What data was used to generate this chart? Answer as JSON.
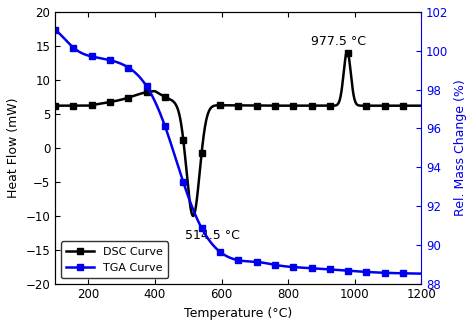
{
  "title": "",
  "xlabel": "Temperature (°C)",
  "ylabel_left": "Heat Flow (mW)",
  "ylabel_right": "Rel. Mass Change (%)",
  "xlim": [
    100,
    1200
  ],
  "ylim_left": [
    -20,
    20
  ],
  "ylim_right": [
    88,
    102
  ],
  "xticks": [
    200,
    400,
    600,
    800,
    1000,
    1200
  ],
  "yticks_left": [
    -20,
    -15,
    -10,
    -5,
    0,
    5,
    10,
    15,
    20
  ],
  "yticks_right": [
    88,
    90,
    92,
    94,
    96,
    98,
    100,
    102
  ],
  "dsc_color": "#000000",
  "tga_color": "#0000ee",
  "annotation_514": "514.5 °C",
  "annotation_977": "977.5 °C",
  "legend_dsc": "DSC Curve",
  "legend_tga": "TGA Curve",
  "background_color": "#ffffff",
  "linewidth": 1.8,
  "marker_size": 4,
  "marker_every": 150
}
